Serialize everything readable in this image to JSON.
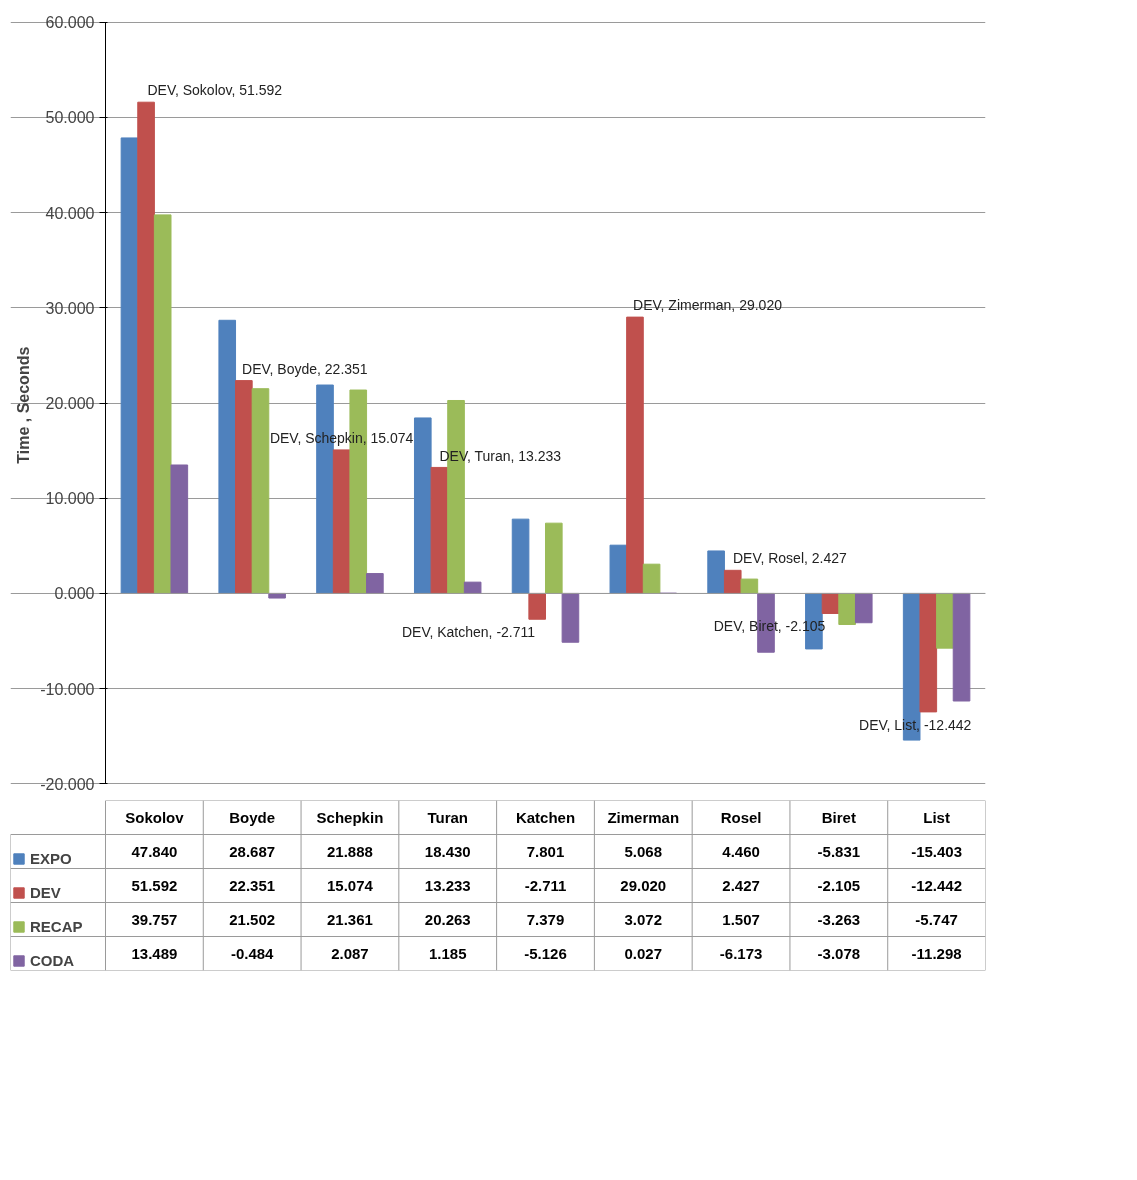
{
  "chart_data": {
    "type": "bar",
    "ylabel": "Time  , Seconds",
    "categories": [
      "Sokolov",
      "Boyde",
      "Schepkin",
      "Turan",
      "Katchen",
      "Zimerman",
      "Rosel",
      "Biret",
      "List"
    ],
    "series": [
      {
        "name": "EXPO",
        "color": "#4f81bd",
        "values": [
          47.84,
          28.687,
          21.888,
          18.43,
          7.801,
          5.068,
          4.46,
          -5.831,
          -15.403
        ],
        "value_labels": [
          "47.840",
          "28.687",
          "21.888",
          "18.430",
          "7.801",
          "5.068",
          "4.460",
          "-5.831",
          "-15.403"
        ]
      },
      {
        "name": "DEV",
        "color": "#c0504d",
        "values": [
          51.592,
          22.351,
          15.074,
          13.233,
          -2.711,
          29.02,
          2.427,
          -2.105,
          -12.442
        ],
        "value_labels": [
          "51.592",
          "22.351",
          "15.074",
          "13.233",
          "-2.711",
          "29.020",
          "2.427",
          "-2.105",
          "-12.442"
        ]
      },
      {
        "name": "RECAP",
        "color": "#9bbb59",
        "values": [
          39.757,
          21.502,
          21.361,
          20.263,
          7.379,
          3.072,
          1.507,
          -3.263,
          -5.747
        ],
        "value_labels": [
          "39.757",
          "21.502",
          "21.361",
          "20.263",
          "7.379",
          "3.072",
          "1.507",
          "-3.263",
          "-5.747"
        ]
      },
      {
        "name": "CODA",
        "color": "#8064a2",
        "values": [
          13.489,
          -0.484,
          2.087,
          1.185,
          -5.126,
          0.027,
          -6.173,
          -3.078,
          -11.298
        ],
        "value_labels": [
          "13.489",
          "-0.484",
          "2.087",
          "1.185",
          "-5.126",
          "0.027",
          "-6.173",
          "-3.078",
          "-11.298"
        ]
      }
    ],
    "ylim": [
      -20,
      60
    ],
    "yticks": [
      {
        "value": -20,
        "label": "-20.000"
      },
      {
        "value": -10,
        "label": "-10.000"
      },
      {
        "value": 0,
        "label": "0.000"
      },
      {
        "value": 10,
        "label": "10.000"
      },
      {
        "value": 20,
        "label": "20.000"
      },
      {
        "value": 30,
        "label": "30.000"
      },
      {
        "value": 40,
        "label": "40.000"
      },
      {
        "value": 50,
        "label": "50.000"
      },
      {
        "value": 60,
        "label": "60.000"
      }
    ],
    "grid": "y",
    "legend": "bottom",
    "annotations": [
      {
        "text": "DEV, Sokolov, 51.592",
        "x": "Sokolov",
        "y": 51.592
      },
      {
        "text": "DEV, Boyde, 22.351",
        "x": "Boyde",
        "y": 22.351
      },
      {
        "text": "DEV, Schepkin, 15.074",
        "x": "Schepkin",
        "y": 15.074
      },
      {
        "text": "DEV, Turan, 13.233",
        "x": "Turan",
        "y": 13.233
      },
      {
        "text": "DEV, Katchen, -2.711",
        "x": "Katchen",
        "y": -2.711
      },
      {
        "text": "DEV, Zimerman, 29.020",
        "x": "Zimerman",
        "y": 29.02
      },
      {
        "text": "DEV, Rosel, 2.427",
        "x": "Rosel",
        "y": 2.427
      },
      {
        "text": "DEV, Biret, -2.105",
        "x": "Biret",
        "y": -2.105
      },
      {
        "text": "DEV, List, -12.442",
        "x": "List",
        "y": -12.442
      }
    ]
  }
}
